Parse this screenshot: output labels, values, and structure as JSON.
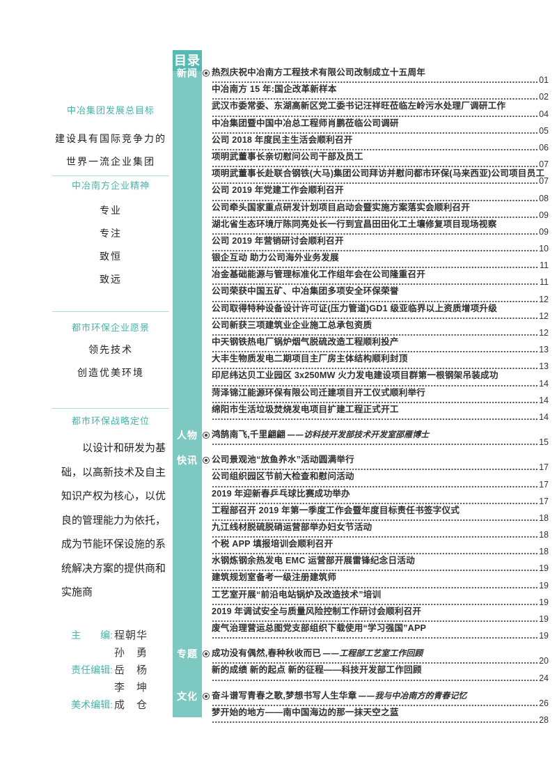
{
  "colors": {
    "accent": "#7dc8c1",
    "accent_dark": "#55bab1",
    "accent_text": "#44b4aa",
    "title_text": "#2f2f2f"
  },
  "sidebar": {
    "blocks": [
      {
        "heading": "中冶集团发展总目标",
        "lines": [
          "建设具有国际竞争力的",
          "世界一流企业集团"
        ]
      },
      {
        "heading": "中冶南方企业精神",
        "lines": [
          "专业",
          "专注",
          "致恒",
          "致远"
        ]
      },
      {
        "heading": "都市环保企业愿景",
        "lines": [
          "领先技术",
          "创造优美环境"
        ]
      },
      {
        "heading": "都市环保战略定位",
        "para_lines": [
          "以设计和研发为基",
          "础，以高新技术及自主",
          "知识产权为核心，以优",
          "良的管理能力为依托，",
          "成为节能环保设施的系",
          "统解决方案的提供商和",
          "实施商"
        ]
      }
    ],
    "editors": [
      {
        "label": "主　　编:",
        "name": "程朝华"
      },
      {
        "label": "",
        "name": "孙　勇"
      },
      {
        "label": "责任编辑:",
        "name": "岳　杨"
      },
      {
        "label": "",
        "name": "李　坤"
      },
      {
        "label": "美术编辑:",
        "name": "成　仓"
      }
    ]
  },
  "toc": {
    "title": "目录",
    "sections": [
      {
        "label": "新闻",
        "items": [
          {
            "t": "热烈庆祝中冶南方工程技术有限公司改制成立十五周年",
            "p": "01"
          },
          {
            "t": "中冶南方 15 年:国企改革新样本",
            "p": "02"
          },
          {
            "t": "武汉市委常委、东湖高新区党工委书记汪祥旺莅临左岭污水处理厂调研工作",
            "p": "04"
          },
          {
            "t": "中冶集团暨中国中冶总工程师肖鹏莅临公司调研",
            "p": "05"
          },
          {
            "t": "公司 2018 年度民主生活会顺利召开",
            "p": "06"
          },
          {
            "t": "项明武董事长亲切慰问公司干部及员工",
            "p": "07"
          },
          {
            "t": "项明武董事长赴联合钢铁(大马)集团公司拜访并慰问都市环保(马来西亚)公司项目员工",
            "p": "07"
          },
          {
            "t": "公司 2019 年党建工作会顺利召开",
            "p": "08"
          },
          {
            "t": "公司牵头国家重点研发计划项目启动会暨实施方案落实会顺利召开",
            "p": "09"
          },
          {
            "t": "湖北省生态环境厅陈同亮处长一行到宜昌田田化工土壤修复项目现场视察",
            "p": "09"
          },
          {
            "t": "公司 2019 年营销研讨会顺利召开",
            "p": "10"
          },
          {
            "t": "银企互动 助力公司海外业务发展",
            "p": "11"
          },
          {
            "t": "冶金基础能源与管理标准化工作组年会在公司隆重召开",
            "p": "11"
          },
          {
            "t": "公司荣获中国五矿、中冶集团多项安全环保荣誉",
            "p": "12"
          },
          {
            "t": "公司取得特种设备设计许可证(压力管道)GD1 级亚临界以上资质增项升级",
            "p": "12"
          },
          {
            "t": "公司新获三项建筑业企业施工总承包资质",
            "p": "12"
          },
          {
            "t": "中天钢铁热电厂锅炉烟气脱硫改造工程顺利投产",
            "p": "13"
          },
          {
            "t": "大丰生物质发电二期项目主厂房主体结构顺利封顶",
            "p": "13"
          },
          {
            "t": "印尼纬达贝工业园区 3x250MW 火力发电建设项目群第一根钢架吊装成功",
            "p": "14"
          },
          {
            "t": "菏泽锦江能源环保有限公司迁建项目开工仪式顺利举行",
            "p": "14"
          },
          {
            "t": "绵阳市生活垃圾焚烧发电项目扩建工程正式开工",
            "p": "14"
          }
        ]
      },
      {
        "label": "人物",
        "items": [
          {
            "t": "鸿鹄南飞,千里翩翩",
            "sub": "——访科技开发部技术开发室邵雁博士",
            "p": "15"
          }
        ]
      },
      {
        "label": "快讯",
        "items": [
          {
            "t": "公司景观池“放鱼养水”活动圆满举行",
            "p": "17"
          },
          {
            "t": "公司组织园区节前大检查和慰问活动",
            "p": "17"
          },
          {
            "t": "2019 年迎新春乒乓球比赛成功举办",
            "p": "17"
          },
          {
            "t": "工程部召开 2019 年第一季度工作会暨年度目标责任书签字仪式",
            "p": "18"
          },
          {
            "t": "九江线材脱硫脱硝运营部举办妇女节活动",
            "p": "18"
          },
          {
            "t": "个税 APP 填报培训会顺利召开",
            "p": "18"
          },
          {
            "t": "水钢炼钢余热发电 EMC 运营部开展雷锋纪念日活动",
            "p": "19"
          },
          {
            "t": "建筑规划室备考一级注册建筑师",
            "p": "19"
          },
          {
            "t": "工艺室开展“前沿电站锅炉及改造技术”培训",
            "p": "19"
          },
          {
            "t": "2019 年调试安全与质量风险控制工作研讨会顺利召开",
            "p": "19"
          },
          {
            "t": "废气治理营运总图党支部组织下载使用“学习强国”APP",
            "p": "19"
          }
        ]
      },
      {
        "label": "专题",
        "items": [
          {
            "t": "成功没有偶然,春种秋收而已",
            "sub": "——工程部工艺室工作回顾",
            "p": "20"
          },
          {
            "t": "新的成绩 新的起点 新的征程——科技开发部工作回顾",
            "p": "24"
          }
        ]
      },
      {
        "label": "文化",
        "items": [
          {
            "t": "奋斗谱写青春之歌,梦想书写人生华章",
            "sub": "——我与中冶南方的青春记忆",
            "p": "26"
          },
          {
            "t": "梦开始的地方——南中国海边的那一抹天空之蓝",
            "p": "28"
          }
        ]
      }
    ]
  }
}
